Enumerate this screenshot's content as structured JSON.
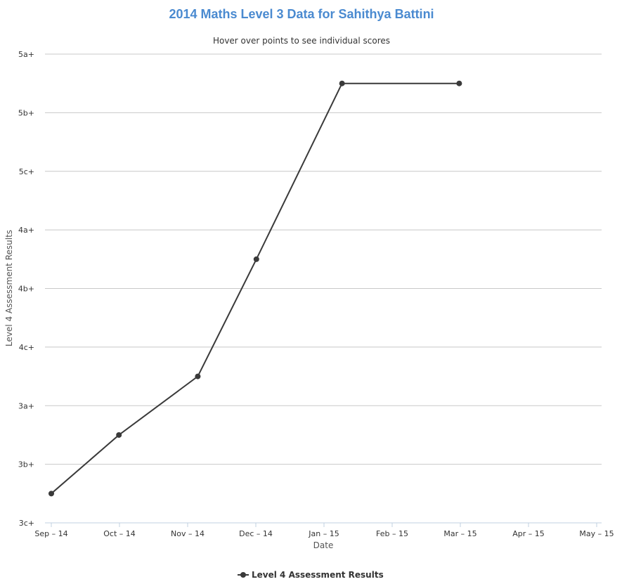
{
  "colors": {
    "title": "#4a8ad0",
    "series": "#3a3a3a",
    "grid": "#c8c8c8",
    "axis": "#c0d0e0"
  },
  "chart_data": {
    "type": "line",
    "title": "2014 Maths Level 3 Data for Sahithya Battini",
    "subtitle": "Hover over points to see individual scores",
    "xlabel": "Date",
    "ylabel": "Level 4 Assessment Results",
    "x_ticks": [
      "Sep – 14",
      "Oct – 14",
      "Nov – 14",
      "Dec – 14",
      "Jan – 15",
      "Feb – 15",
      "Mar – 15",
      "Apr – 15",
      "May – 15"
    ],
    "y_ticks": [
      "3c+",
      "3b+",
      "3a+",
      "4c+",
      "4b+",
      "4a+",
      "5c+",
      "5b+",
      "5a+"
    ],
    "x_range": [
      "2014-09-01",
      "2015-05-01"
    ],
    "ylim": [
      0,
      8
    ],
    "grid": true,
    "legend_position": "bottom-center",
    "series": [
      {
        "name": "Level 4 Assessment Results",
        "points": [
          {
            "x": "2014-09-01",
            "y": 0.5
          },
          {
            "x": "2014-10-01",
            "y": 1.5
          },
          {
            "x": "2014-11-05",
            "y": 2.5
          },
          {
            "x": "2014-12-01",
            "y": 4.5
          },
          {
            "x": "2015-01-08",
            "y": 7.5
          },
          {
            "x": "2015-03-01",
            "y": 7.5
          }
        ]
      }
    ]
  }
}
